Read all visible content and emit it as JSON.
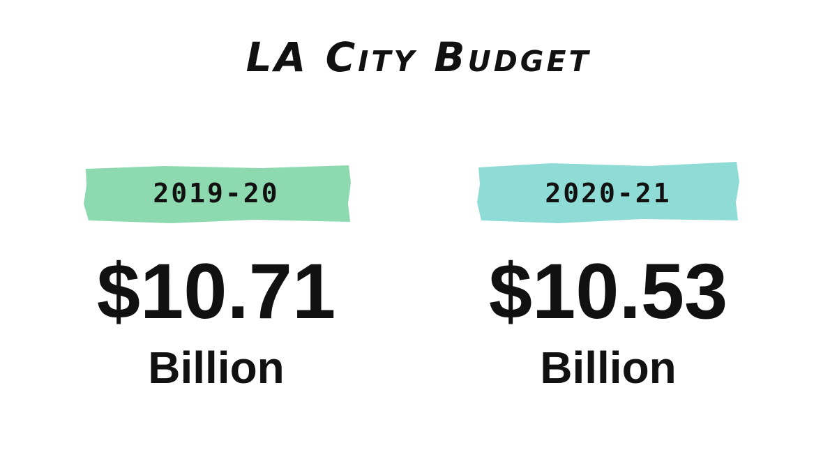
{
  "title": "LA City Budget",
  "cards": [
    {
      "year": "2019-20",
      "amount": "$10.71",
      "unit": "Billion"
    },
    {
      "year": "2020-21",
      "amount": "$10.53",
      "unit": "Billion"
    }
  ]
}
